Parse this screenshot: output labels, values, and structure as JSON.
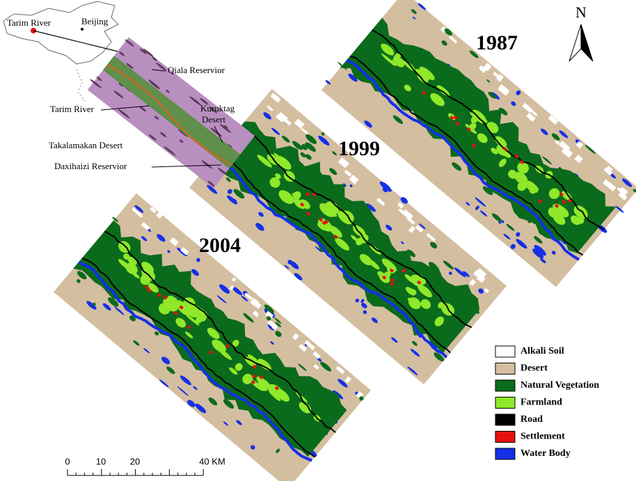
{
  "inset": {
    "labels": [
      "Tarim River",
      "Beijing",
      "Qiala Reservior",
      "Tarim River",
      "Kuruktag",
      "Desert",
      "Takalamakan  Desert",
      "Daxihaizi Reservior"
    ]
  },
  "years": [
    "1987",
    "1999",
    "2004"
  ],
  "north": "N",
  "legend": [
    {
      "label": "Alkali Soil",
      "color": "#ffffff"
    },
    {
      "label": "Desert",
      "color": "#d4bea0"
    },
    {
      "label": "Natural Vegetation",
      "color": "#0b6b1c"
    },
    {
      "label": "Farmland",
      "color": "#8fe82a"
    },
    {
      "label": "Road",
      "color": "#000000"
    },
    {
      "label": "Settlement",
      "color": "#e51010"
    },
    {
      "label": "Water Body",
      "color": "#1530e6"
    }
  ],
  "scale_bar": [
    "0",
    "10",
    "20",
    "40 KM"
  ]
}
